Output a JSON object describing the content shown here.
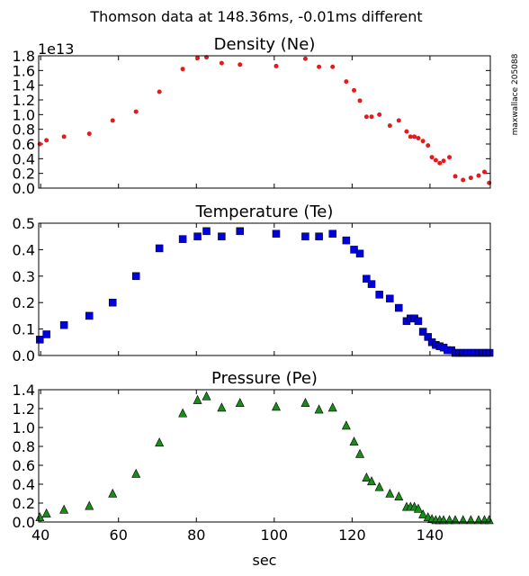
{
  "figure": {
    "suptitle": "Thomson data at 148.36ms, -0.01ms different",
    "side_label": "maxwallace 205088",
    "shared_xlabel": "sec",
    "xlim": [
      39.5,
      155.5
    ],
    "xticks": [
      40,
      60,
      80,
      100,
      120,
      140
    ]
  },
  "chart_data": [
    {
      "type": "scatter",
      "title": "Density (Ne)",
      "offset_label": "1e13",
      "ylim": [
        0.0,
        1.8
      ],
      "yticks": [
        0.0,
        0.2,
        0.4,
        0.6,
        0.8,
        1.0,
        1.2,
        1.4,
        1.6,
        1.8
      ],
      "ytick_labels": [
        "0.0",
        "0.2",
        "0.4",
        "0.6",
        "0.8",
        "1.0",
        "1.2",
        "1.4",
        "1.6",
        "1.8"
      ],
      "marker": "circle",
      "color": "#e41a1c",
      "x": [
        39.8,
        41.5,
        46,
        52.5,
        58.5,
        64.5,
        70.5,
        76.5,
        80.3,
        82.6,
        86.5,
        91.2,
        100.5,
        108,
        111.5,
        115,
        118.5,
        120.5,
        122,
        123.7,
        125,
        127,
        129.7,
        132,
        134,
        135,
        136,
        137,
        138.2,
        139.5,
        140.5,
        141.5,
        142.5,
        143.5,
        145,
        146.5,
        148.5,
        150.5,
        152.5,
        154,
        155.2
      ],
      "y": [
        0.6,
        0.65,
        0.7,
        0.74,
        0.92,
        1.04,
        1.31,
        1.62,
        1.77,
        1.78,
        1.7,
        1.68,
        1.66,
        1.76,
        1.65,
        1.65,
        1.45,
        1.33,
        1.19,
        0.97,
        0.97,
        1.0,
        0.85,
        0.92,
        0.77,
        0.7,
        0.7,
        0.68,
        0.64,
        0.58,
        0.42,
        0.38,
        0.34,
        0.37,
        0.42,
        0.16,
        0.11,
        0.14,
        0.17,
        0.22,
        0.07
      ]
    },
    {
      "type": "scatter",
      "title": "Temperature (Te)",
      "ylim": [
        0.0,
        0.5
      ],
      "yticks": [
        0.0,
        0.1,
        0.2,
        0.3,
        0.4,
        0.5
      ],
      "ytick_labels": [
        "0.0",
        "0.1",
        "0.2",
        "0.3",
        "0.4",
        "0.5"
      ],
      "marker": "square",
      "color": "#0000dd",
      "x": [
        39.8,
        41.5,
        46,
        52.5,
        58.5,
        64.5,
        70.5,
        76.5,
        80.3,
        82.6,
        86.5,
        91.2,
        100.5,
        108,
        111.5,
        115,
        118.5,
        120.5,
        122,
        123.7,
        125,
        127,
        129.7,
        132,
        134,
        135,
        136,
        137,
        138.2,
        139.5,
        140.5,
        141.5,
        142.5,
        143.5,
        144.5,
        145.5,
        146.5,
        147.5,
        148.5,
        149.5,
        150.5,
        151.5,
        152.5,
        153.5,
        154.5,
        155.3
      ],
      "y": [
        0.06,
        0.08,
        0.115,
        0.15,
        0.2,
        0.3,
        0.405,
        0.44,
        0.45,
        0.47,
        0.45,
        0.47,
        0.46,
        0.45,
        0.45,
        0.46,
        0.435,
        0.4,
        0.385,
        0.29,
        0.27,
        0.23,
        0.215,
        0.18,
        0.13,
        0.14,
        0.14,
        0.13,
        0.09,
        0.07,
        0.05,
        0.04,
        0.035,
        0.03,
        0.02,
        0.02,
        0.01,
        0.01,
        0.01,
        0.01,
        0.01,
        0.01,
        0.01,
        0.01,
        0.01,
        0.01
      ]
    },
    {
      "type": "scatter",
      "title": "Pressure (Pe)",
      "xlabel": "sec",
      "ylim": [
        0.0,
        1.4
      ],
      "yticks": [
        0.0,
        0.2,
        0.4,
        0.6,
        0.8,
        1.0,
        1.2,
        1.4
      ],
      "ytick_labels": [
        "0.0",
        "0.2",
        "0.4",
        "0.6",
        "0.8",
        "1.0",
        "1.2",
        "1.4"
      ],
      "marker": "triangle",
      "color": "#1a8c1a",
      "x": [
        39.8,
        41.5,
        46,
        52.5,
        58.5,
        64.5,
        70.5,
        76.5,
        80.3,
        82.6,
        86.5,
        91.2,
        100.5,
        108,
        111.5,
        115,
        118.5,
        120.5,
        122,
        123.7,
        125,
        127,
        129.7,
        132,
        134,
        135,
        136,
        137,
        138.2,
        139.5,
        140.5,
        141.5,
        142.5,
        143.5,
        145,
        146.5,
        148.5,
        150.5,
        152.5,
        154,
        155.2
      ],
      "y": [
        0.05,
        0.09,
        0.13,
        0.17,
        0.3,
        0.51,
        0.84,
        1.15,
        1.29,
        1.33,
        1.21,
        1.26,
        1.22,
        1.26,
        1.19,
        1.21,
        1.02,
        0.85,
        0.72,
        0.47,
        0.43,
        0.37,
        0.3,
        0.27,
        0.16,
        0.16,
        0.16,
        0.14,
        0.08,
        0.05,
        0.03,
        0.02,
        0.02,
        0.02,
        0.02,
        0.02,
        0.02,
        0.02,
        0.02,
        0.02,
        0.02
      ]
    }
  ]
}
